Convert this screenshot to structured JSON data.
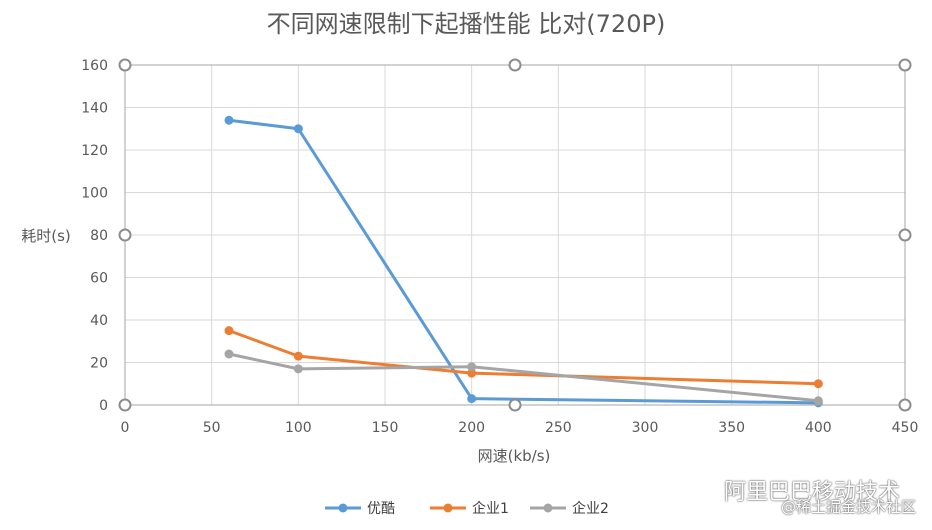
{
  "chart_data": {
    "type": "line",
    "title": "不同网速限制下起播性能 比对(720P)",
    "xlabel": "网速(kb/s)",
    "ylabel": "耗时(s)",
    "xlim": [
      0,
      450
    ],
    "ylim": [
      0,
      160
    ],
    "xticks": [
      0,
      50,
      100,
      150,
      200,
      250,
      300,
      350,
      400,
      450
    ],
    "yticks": [
      0,
      20,
      40,
      60,
      80,
      100,
      120,
      140,
      160
    ],
    "grid": true,
    "legend_position": "bottom",
    "series": [
      {
        "name": "优酷",
        "color": "#5b9bd5",
        "x": [
          60,
          100,
          200,
          400
        ],
        "y": [
          134,
          130,
          3,
          1
        ]
      },
      {
        "name": "企业1",
        "color": "#ed7d31",
        "x": [
          60,
          100,
          200,
          400
        ],
        "y": [
          35,
          23,
          15,
          10
        ]
      },
      {
        "name": "企业2",
        "color": "#a5a5a5",
        "x": [
          60,
          100,
          200,
          400
        ],
        "y": [
          24,
          17,
          18,
          2
        ]
      }
    ]
  },
  "watermark": {
    "line1": "阿里巴巴移动技术",
    "line2": "@稀土掘金技术社区"
  }
}
